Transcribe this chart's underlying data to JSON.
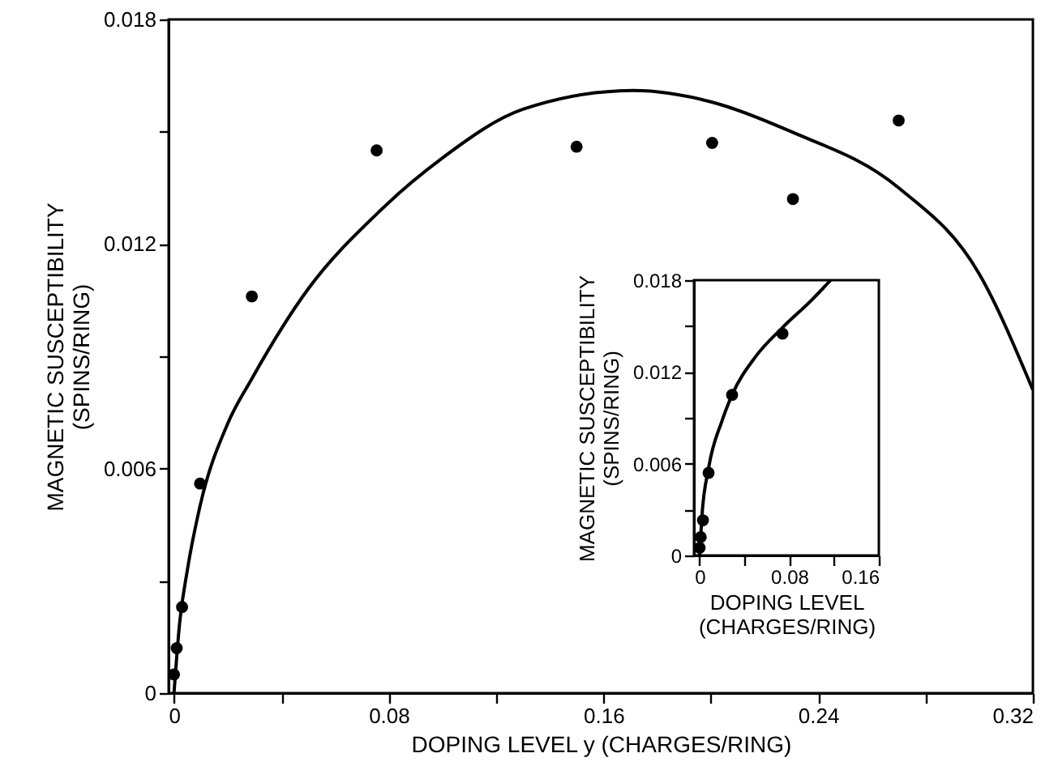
{
  "chart_data": [
    {
      "type": "scatter",
      "xlabel": "DOPING LEVEL y (CHARGES/RING)",
      "ylabel": "MAGNETIC SUSCEPTIBILITY\n(SPINS/RING)",
      "xlim": [
        -0.002,
        0.32
      ],
      "ylim": [
        0,
        0.018
      ],
      "xticks": [
        0,
        {
          "value": 0.04,
          "label": null
        },
        0.08,
        {
          "value": 0.12,
          "label": null
        },
        0.16,
        {
          "value": 0.2,
          "label": null
        },
        0.24,
        {
          "value": 0.28,
          "label": null
        },
        0.32
      ],
      "yticks": [
        0,
        {
          "value": 0.003,
          "label": null
        },
        0.006,
        {
          "value": 0.009,
          "label": null
        },
        0.012,
        {
          "value": 0.015,
          "label": null
        },
        0.018
      ],
      "series": [
        {
          "type": "scatter",
          "marker": "circle",
          "color": "#000000",
          "x": [
            0,
            0.001,
            0.003,
            0.0097,
            0.029,
            0.0755,
            0.15,
            0.2005,
            0.2306,
            0.27
          ],
          "values": [
            0.0005,
            0.0012,
            0.0023,
            0.0056,
            0.0106,
            0.0145,
            0.0146,
            0.0147,
            0.0132,
            0.0153
          ]
        },
        {
          "type": "line",
          "color": "#000000",
          "x": [
            0,
            0.002,
            0.005,
            0.0097,
            0.02,
            0.029,
            0.05,
            0.0755,
            0.1,
            0.13,
            0.171,
            0.2,
            0.23,
            0.27,
            0.3,
            0.32
          ],
          "values": [
            0,
            0.0018,
            0.0033,
            0.005,
            0.0072,
            0.0084,
            0.0108,
            0.0128,
            0.0143,
            0.0156,
            0.0161,
            0.0158,
            0.015,
            0.0135,
            0.0112,
            0.0081
          ]
        }
      ]
    },
    {
      "type": "scatter",
      "xlabel": "DOPING LEVEL\n(CHARGES/RING)",
      "ylabel": "MAGNETIC SUSCEPTIBILITY\n(SPINS/RING)",
      "xlim": [
        -0.005,
        0.16
      ],
      "ylim": [
        0,
        0.018
      ],
      "xticks": [
        0,
        {
          "value": 0.04,
          "label": null
        },
        0.08,
        {
          "value": 0.12,
          "label": null
        },
        0.16
      ],
      "yticks": [
        0,
        {
          "value": 0.003,
          "label": null
        },
        0.006,
        {
          "value": 0.009,
          "label": null
        },
        0.012,
        {
          "value": 0.015,
          "label": null
        },
        0.018
      ],
      "series": [
        {
          "type": "scatter",
          "marker": "circle",
          "color": "#000000",
          "x": [
            0,
            0.001,
            0.003,
            0.008,
            0.029,
            0.074
          ],
          "values": [
            0.0005,
            0.0012,
            0.0023,
            0.0054,
            0.0105,
            0.0145
          ]
        },
        {
          "type": "line",
          "color": "#000000",
          "x": [
            0,
            0.002,
            0.008,
            0.02,
            0.029,
            0.05,
            0.074,
            0.1,
            0.117
          ],
          "values": [
            0,
            0.0025,
            0.0057,
            0.0088,
            0.0105,
            0.013,
            0.0149,
            0.0167,
            0.018
          ]
        }
      ]
    }
  ]
}
